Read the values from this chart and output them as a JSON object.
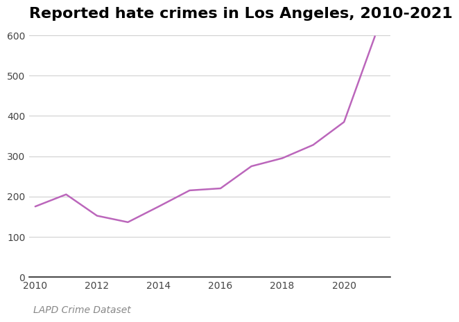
{
  "title": "Reported hate crimes in Los Angeles, 2010-2021",
  "caption": "LAPD Crime Dataset",
  "years": [
    2010,
    2011,
    2012,
    2013,
    2014,
    2015,
    2016,
    2017,
    2018,
    2019,
    2020,
    2021
  ],
  "values": [
    175,
    205,
    152,
    136,
    175,
    215,
    220,
    275,
    295,
    328,
    385,
    598
  ],
  "line_color": "#BB66BB",
  "ylim": [
    0,
    620
  ],
  "yticks": [
    0,
    100,
    200,
    300,
    400,
    500,
    600
  ],
  "xlim": [
    2009.8,
    2021.5
  ],
  "xticks": [
    2010,
    2012,
    2014,
    2016,
    2018,
    2020
  ],
  "background_color": "#ffffff",
  "grid_color": "#d0d0d0",
  "title_fontsize": 16,
  "tick_fontsize": 10,
  "caption_fontsize": 10,
  "line_width": 1.8
}
